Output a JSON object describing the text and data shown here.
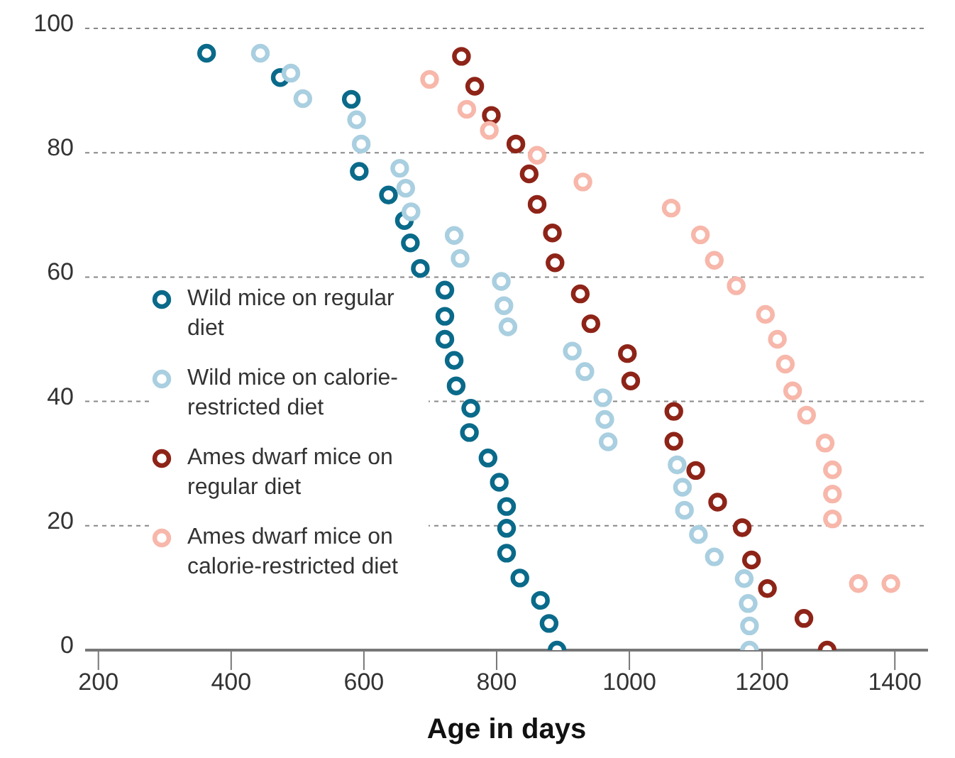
{
  "chart_data": {
    "type": "scatter",
    "xlabel": "Age in days",
    "xlim": [
      180,
      1450
    ],
    "xticks": [
      200,
      400,
      600,
      800,
      1000,
      1200,
      1400
    ],
    "ylim": [
      0,
      100
    ],
    "yticks": [
      0,
      20,
      40,
      60,
      80,
      100
    ],
    "grid": "y",
    "legend": "left",
    "marker": "circle",
    "series": [
      {
        "name": "Wild mice on regular diet",
        "color": "#0a6a8a",
        "x": [
          363,
          474,
          581,
          593,
          637,
          661,
          670,
          685,
          722,
          722,
          722,
          736,
          739,
          761,
          759,
          787,
          804,
          815,
          815,
          815,
          835,
          866,
          879,
          891
        ],
        "values": [
          96,
          92.1,
          88.6,
          77,
          73.2,
          69.1,
          65.5,
          61.4,
          57.9,
          53.7,
          50,
          46.6,
          42.5,
          38.9,
          35,
          30.9,
          27,
          23.1,
          19.6,
          15.6,
          11.6,
          8,
          4.3,
          0
        ]
      },
      {
        "name": "Wild mice on calorie-restricted diet",
        "color": "#a9cfe0",
        "x": [
          444,
          490,
          508,
          589,
          596,
          654,
          663,
          671,
          736,
          745,
          807,
          811,
          817,
          914,
          933,
          960,
          963,
          968,
          1072,
          1080,
          1083,
          1104,
          1128,
          1173,
          1179,
          1181,
          1181
        ],
        "values": [
          96,
          92.8,
          88.7,
          85.3,
          81.4,
          77.5,
          74.3,
          70.5,
          66.7,
          63,
          59.3,
          55.4,
          52,
          48.1,
          44.8,
          40.6,
          37.1,
          33.5,
          29.8,
          26.2,
          22.5,
          18.6,
          15,
          11.5,
          7.5,
          3.9,
          0
        ]
      },
      {
        "name": "Ames dwarf mice on regular diet",
        "color": "#8e2418",
        "x": [
          747,
          767,
          792,
          829,
          849,
          861,
          884,
          888,
          926,
          942,
          997,
          1002,
          1067,
          1067,
          1100,
          1133,
          1170,
          1184,
          1208,
          1263,
          1298
        ],
        "values": [
          95.5,
          90.7,
          86,
          81.4,
          76.6,
          71.7,
          67.1,
          62.3,
          57.3,
          52.5,
          47.7,
          43.3,
          38.4,
          33.6,
          28.9,
          23.8,
          19.7,
          14.5,
          9.9,
          5.1,
          0
        ]
      },
      {
        "name": "Ames dwarf mice on calorie-restricted diet",
        "color": "#f7b7aa",
        "x": [
          699,
          755,
          789,
          861,
          930,
          1063,
          1107,
          1128,
          1161,
          1205,
          1223,
          1235,
          1246,
          1267,
          1295,
          1306,
          1306,
          1306,
          1345,
          1394
        ],
        "values": [
          91.8,
          87,
          83.6,
          79.6,
          75.3,
          71.1,
          66.8,
          62.7,
          58.6,
          54,
          50,
          46,
          41.7,
          37.8,
          33.3,
          29,
          25.1,
          21.1,
          10.7,
          10.7
        ]
      }
    ]
  }
}
